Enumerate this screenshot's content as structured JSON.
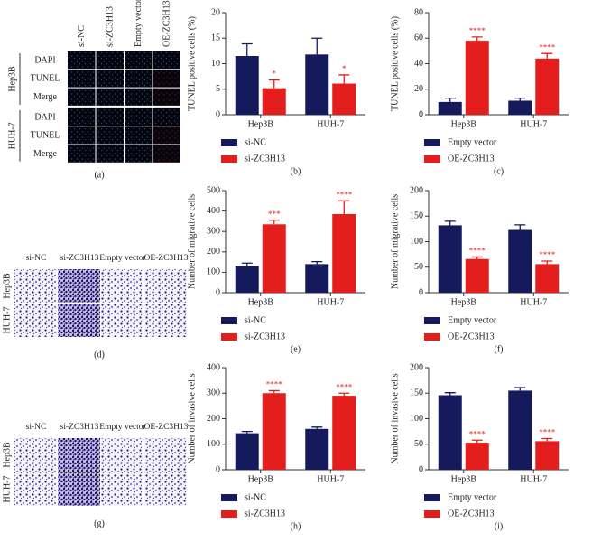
{
  "image_panels": [
    {
      "label": "(a)",
      "columns": [
        "si-NC",
        "si-ZC3H13",
        "Empty vector",
        "OE-ZC3H13"
      ],
      "groups": [
        {
          "name": "Hep3B",
          "rows": [
            "DAPI",
            "TUNEL",
            "Merge"
          ]
        },
        {
          "name": "HUH-7",
          "rows": [
            "DAPI",
            "TUNEL",
            "Merge"
          ]
        }
      ]
    },
    {
      "label": "(d)",
      "columns": [
        "si-NC",
        "si-ZC3H13",
        "Empty vector",
        "OE-ZC3H13"
      ],
      "rows": [
        "Hep3B",
        "HUH-7"
      ]
    },
    {
      "label": "(g)",
      "columns": [
        "si-NC",
        "si-ZC3H13",
        "Empty vector",
        "OE-ZC3H13"
      ],
      "rows": [
        "Hep3B",
        "HUH-7"
      ]
    }
  ],
  "chart_data": [
    {
      "type": "bar",
      "label": "(b)",
      "y_label": "TUNEL positive cells (%)",
      "categories": [
        "Hep3B",
        "HUH-7"
      ],
      "ylim": [
        0,
        20
      ],
      "yticks": [
        0,
        5,
        10,
        15,
        20
      ],
      "series": [
        {
          "name": "si-NC",
          "color": "#151a5c",
          "values": [
            11.5,
            11.8
          ],
          "errors": [
            2.4,
            3.2
          ]
        },
        {
          "name": "si-ZC3H13",
          "color": "#e31e1c",
          "values": [
            5.2,
            6.1
          ],
          "errors": [
            1.6,
            1.7
          ],
          "significance": [
            "*",
            "*"
          ]
        }
      ]
    },
    {
      "type": "bar",
      "label": "(c)",
      "y_label": "TUNEL positive cells (%)",
      "categories": [
        "Hep3B",
        "HUH-7"
      ],
      "ylim": [
        0,
        80
      ],
      "yticks": [
        0,
        20,
        40,
        60,
        80
      ],
      "series": [
        {
          "name": "Empty vector",
          "color": "#151a5c",
          "values": [
            10,
            11
          ],
          "errors": [
            3,
            2
          ]
        },
        {
          "name": "OE-ZC3H13",
          "color": "#e31e1c",
          "values": [
            58,
            44
          ],
          "errors": [
            3,
            4
          ],
          "significance": [
            "****",
            "****"
          ]
        }
      ]
    },
    {
      "type": "bar",
      "label": "(e)",
      "y_label": "Number of migrative cells",
      "categories": [
        "Hep3B",
        "HUH-7"
      ],
      "ylim": [
        0,
        500
      ],
      "yticks": [
        0,
        100,
        200,
        300,
        400,
        500
      ],
      "series": [
        {
          "name": "si-NC",
          "color": "#151a5c",
          "values": [
            130,
            140
          ],
          "errors": [
            15,
            12
          ]
        },
        {
          "name": "si-ZC3H13",
          "color": "#e31e1c",
          "values": [
            335,
            385
          ],
          "errors": [
            20,
            65
          ],
          "significance": [
            "***",
            "****"
          ]
        }
      ]
    },
    {
      "type": "bar",
      "label": "(f)",
      "y_label": "Number of migrative cells",
      "categories": [
        "Hep3B",
        "HUH-7"
      ],
      "ylim": [
        0,
        200
      ],
      "yticks": [
        0,
        50,
        100,
        150,
        200
      ],
      "series": [
        {
          "name": "Empty vector",
          "color": "#151a5c",
          "values": [
            132,
            123
          ],
          "errors": [
            8,
            10
          ]
        },
        {
          "name": "OE-ZC3H13",
          "color": "#e31e1c",
          "values": [
            66,
            56
          ],
          "errors": [
            4,
            6
          ],
          "significance": [
            "****",
            "****"
          ]
        }
      ]
    },
    {
      "type": "bar",
      "label": "(h)",
      "y_label": "Number of invasive cells",
      "categories": [
        "Hep3B",
        "HUH-7"
      ],
      "ylim": [
        0,
        400
      ],
      "yticks": [
        0,
        100,
        200,
        300,
        400
      ],
      "series": [
        {
          "name": "si-NC",
          "color": "#151a5c",
          "values": [
            143,
            160
          ],
          "errors": [
            7,
            7
          ]
        },
        {
          "name": "si-ZC3H13",
          "color": "#e31e1c",
          "values": [
            300,
            290
          ],
          "errors": [
            10,
            10
          ],
          "significance": [
            "****",
            "****"
          ]
        }
      ]
    },
    {
      "type": "bar",
      "label": "(i)",
      "y_label": "Number of invasive cells",
      "categories": [
        "Hep3B",
        "HUH-7"
      ],
      "ylim": [
        0,
        200
      ],
      "yticks": [
        0,
        50,
        100,
        150,
        200
      ],
      "series": [
        {
          "name": "Empty vector",
          "color": "#151a5c",
          "values": [
            146,
            155
          ],
          "errors": [
            5,
            6
          ]
        },
        {
          "name": "OE-ZC3H13",
          "color": "#e31e1c",
          "values": [
            53,
            56
          ],
          "errors": [
            5,
            5
          ],
          "significance": [
            "****",
            "****"
          ]
        }
      ]
    }
  ]
}
